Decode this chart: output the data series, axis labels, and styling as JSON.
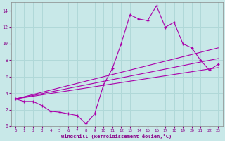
{
  "background_color": "#c8e8e8",
  "grid_color": "#b0d8d8",
  "line_color": "#aa00aa",
  "xlabel": "Windchill (Refroidissement éolien,°C)",
  "xlim": [
    -0.5,
    23.5
  ],
  "ylim": [
    0,
    15
  ],
  "xticks": [
    0,
    1,
    2,
    3,
    4,
    5,
    6,
    7,
    8,
    9,
    10,
    11,
    12,
    13,
    14,
    15,
    16,
    17,
    18,
    19,
    20,
    21,
    22,
    23
  ],
  "yticks": [
    0,
    2,
    4,
    6,
    8,
    10,
    12,
    14
  ],
  "line1_x": [
    0,
    1,
    2,
    3,
    4,
    5,
    6,
    7,
    8,
    9,
    10,
    11,
    12,
    13,
    14,
    15,
    16,
    17,
    18,
    19,
    20,
    21,
    22,
    23
  ],
  "line1_y": [
    3.3,
    3.0,
    3.0,
    2.5,
    1.8,
    1.7,
    1.5,
    1.3,
    0.3,
    1.5,
    5.0,
    7.0,
    10.0,
    13.5,
    13.0,
    12.8,
    14.6,
    12.0,
    12.6,
    10.0,
    9.5,
    8.0,
    6.8,
    7.5
  ],
  "line2_x": [
    0,
    23
  ],
  "line2_y": [
    3.3,
    9.5
  ],
  "line3_x": [
    0,
    23
  ],
  "line3_y": [
    3.3,
    8.2
  ],
  "line4_x": [
    0,
    23
  ],
  "line4_y": [
    3.3,
    7.1
  ]
}
